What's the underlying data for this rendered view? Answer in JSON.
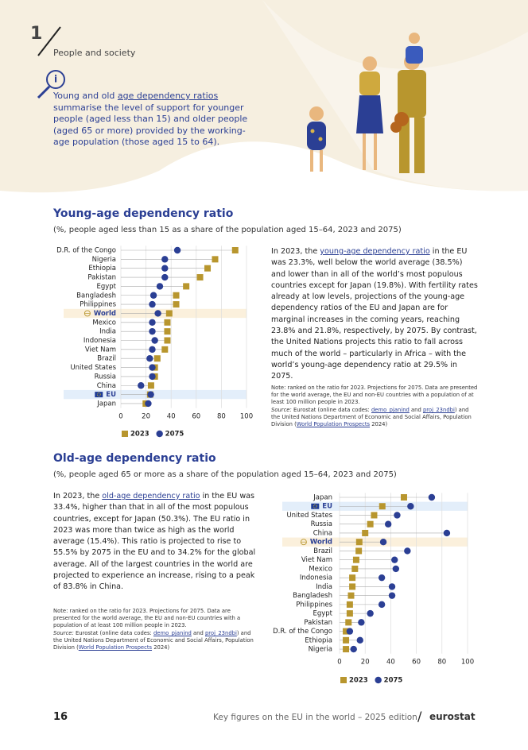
{
  "header": {
    "chapter": "1",
    "section": "People and society",
    "intro": {
      "parts": [
        {
          "text": "Young and old "
        },
        {
          "text": "age dependency ratios",
          "style": "link"
        },
        {
          "text": " summarise the level of support for younger people (aged less than 15) and older people (aged 65 or more) provided by the working-age population (those aged 15 to 64)."
        }
      ]
    }
  },
  "chart_data": [
    {
      "type": "dot",
      "title": "Young-age dependency ratio",
      "subtitle": "(%, people aged less than 15 as a share of the population aged 15–64, 2023 and 2075)",
      "categories": [
        "D.R. of the Congo",
        "Nigeria",
        "Ethiopia",
        "Pakistan",
        "Egypt",
        "Bangladesh",
        "Philippines",
        "World",
        "Mexico",
        "India",
        "Indonesia",
        "Viet Nam",
        "Brazil",
        "United States",
        "Russia",
        "China",
        "EU",
        "Japan"
      ],
      "series": [
        {
          "name": "2023",
          "color": "#b8962e",
          "marker": "square",
          "values": [
            91,
            75,
            69,
            63,
            52,
            44,
            44,
            38.5,
            37,
            37,
            37,
            35,
            29,
            27,
            27,
            24,
            23.3,
            19.8
          ]
        },
        {
          "name": "2075",
          "color": "#2b3f94",
          "marker": "circle",
          "values": [
            45,
            35,
            35,
            35,
            31,
            26,
            25,
            29.5,
            25,
            25,
            27,
            25,
            23,
            25,
            25,
            16,
            23.8,
            21.8
          ]
        }
      ],
      "xlim": [
        0,
        100
      ],
      "xticks": [
        0,
        20,
        40,
        60,
        80,
        100
      ],
      "grid": true,
      "highlights": [
        {
          "index": 7,
          "color": "#fbf0dc",
          "icon": "globe"
        },
        {
          "index": 16,
          "color": "#e3eefa",
          "icon": "flag"
        }
      ]
    },
    {
      "type": "dot",
      "title": "Old-age dependency ratio",
      "subtitle": "(%, people aged 65 or more as a share of the population aged 15–64, 2023 and 2075)",
      "categories": [
        "Japan",
        "EU",
        "United States",
        "Russia",
        "China",
        "World",
        "Brazil",
        "Viet Nam",
        "Mexico",
        "Indonesia",
        "India",
        "Bangladesh",
        "Philippines",
        "Egypt",
        "Pakistan",
        "D.R. of the Congo",
        "Ethiopia",
        "Nigeria"
      ],
      "series": [
        {
          "name": "2023",
          "color": "#b8962e",
          "marker": "square",
          "values": [
            50.3,
            33.4,
            27,
            24,
            20,
            15.4,
            15,
            13,
            12,
            10,
            10,
            9,
            8,
            8,
            7,
            5,
            5,
            5
          ]
        },
        {
          "name": "2075",
          "color": "#2b3f94",
          "marker": "circle",
          "values": [
            72,
            55.5,
            45,
            38,
            83.8,
            34.2,
            53,
            43,
            44,
            33,
            41,
            41,
            33,
            24,
            17,
            8,
            16,
            11
          ]
        }
      ],
      "xlim": [
        0,
        100
      ],
      "xticks": [
        0,
        20,
        40,
        60,
        80,
        100
      ],
      "grid": true,
      "highlights": [
        {
          "index": 1,
          "color": "#e3eefa",
          "icon": "flag"
        },
        {
          "index": 5,
          "color": "#fbf0dc",
          "icon": "globe"
        }
      ]
    }
  ],
  "text": [
    {
      "paragraph": {
        "parts": [
          {
            "text": "In 2023, the "
          },
          {
            "text": "young-age dependency ratio",
            "style": "link"
          },
          {
            "text": " in the EU was 23.3%, well below the world average (38.5%) and lower than in all of the world’s most populous countries except for Japan (19.8%). With fertility rates already at low levels, projections of the young-age dependency ratios of the EU and Japan are for marginal increases in the coming years, reaching 23.8% and 21.8%, respectively, by 2075. By contrast, the United Nations projects this ratio to fall across much of the world – particularly in Africa – with the world’s young-age dependency ratio at 29.5% in 2075."
          }
        ]
      },
      "note": "Note: ranked on the ratio for 2023. Projections for 2075. Data are presented for the world average, the EU and non-EU countries with a population of at least 100 million people in 2023.",
      "source": {
        "parts": [
          {
            "text": "Source:",
            "style": "italic"
          },
          {
            "text": " Eurostat (online data codes: "
          },
          {
            "text": "demo_pjanind",
            "style": "link"
          },
          {
            "text": " and "
          },
          {
            "text": "proj_23ndbi",
            "style": "link"
          },
          {
            "text": ") and the United Nations Department of Economic and Social Affairs, Population Division ("
          },
          {
            "text": "World Population Prospects",
            "style": "link"
          },
          {
            "text": " 2024)"
          }
        ]
      }
    },
    {
      "paragraph": {
        "parts": [
          {
            "text": "In 2023, the "
          },
          {
            "text": "old-age dependency ratio",
            "style": "link"
          },
          {
            "text": " in the EU was 33.4%, higher than that in all of the most populous countries, except for Japan (50.3%). The EU ratio in 2023 was more than twice as high as the world average (15.4%). This ratio is projected to rise to 55.5% by 2075 in the EU and to 34.2% for the global average. All of the largest countries in the world are projected to experience an increase, rising to a peak of 83.8% in China."
          }
        ]
      },
      "note": "Note: ranked on the ratio for 2023. Projections for 2075. Data are presented for the world average, the EU and non-EU countries with a population of at least 100 million people in 2023.",
      "source": {
        "parts": [
          {
            "text": "Source:",
            "style": "italic"
          },
          {
            "text": " Eurostat (online data codes: "
          },
          {
            "text": "demo_pjanind",
            "style": "link"
          },
          {
            "text": " and "
          },
          {
            "text": "proj_23ndbi",
            "style": "link"
          },
          {
            "text": ") and the United Nations Department of Economic and Social Affairs, Population Division ("
          },
          {
            "text": "World Population Prospects",
            "style": "link"
          },
          {
            "text": " 2024)"
          }
        ]
      }
    }
  ],
  "footer": {
    "page": "16",
    "title": "Key figures on the EU in the world – 2025 edition",
    "brand": "eurostat"
  }
}
